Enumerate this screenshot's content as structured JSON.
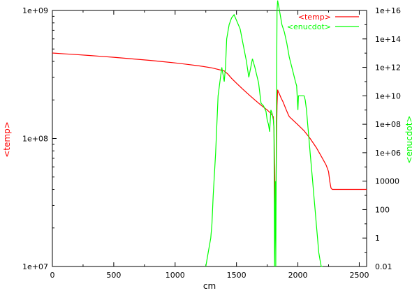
{
  "chart_data": {
    "type": "line",
    "xlabel": "cm",
    "ylabel_left": "<temp>",
    "ylabel_right": "<enucdot>",
    "xlim": [
      0,
      2560
    ],
    "ylim_left": [
      10000000,
      1000000000
    ],
    "ylim_right": [
      0.01,
      1e+16
    ],
    "yscale_left": "log",
    "yscale_right": "log",
    "x_ticks": [
      "0",
      "500",
      "1000",
      "1500",
      "2000",
      "2500"
    ],
    "x_tick_values": [
      0,
      500,
      1000,
      1500,
      2000,
      2500
    ],
    "left_ticks": [
      "1e+07",
      "1e+08",
      "1e+09"
    ],
    "left_tick_values": [
      10000000,
      100000000,
      1000000000
    ],
    "right_ticks": [
      "0.01",
      "1",
      "100",
      "10000",
      "1e+06",
      "1e+08",
      "1e+10",
      "1e+12",
      "1e+14",
      "1e+16"
    ],
    "right_tick_values": [
      0.01,
      1,
      100,
      10000,
      1000000,
      100000000,
      10000000000,
      1000000000000,
      100000000000000,
      10000000000000000
    ],
    "legend_position": "top-right",
    "grid": false,
    "series": [
      {
        "name": "<temp>",
        "axis": "left",
        "color": "#ff0000",
        "x": [
          0,
          100,
          200,
          300,
          400,
          500,
          600,
          700,
          800,
          900,
          1000,
          1100,
          1200,
          1300,
          1400,
          1430,
          1460,
          1500,
          1550,
          1600,
          1650,
          1700,
          1750,
          1780,
          1800,
          1805,
          1810,
          1815,
          1820,
          1825,
          1830,
          1835,
          1840,
          1850,
          1860,
          1880,
          1900,
          1920,
          1930,
          1950,
          2000,
          2050,
          2100,
          2150,
          2200,
          2230,
          2250,
          2260,
          2270,
          2280,
          2300,
          2400,
          2500,
          2560
        ],
        "y": [
          465000000,
          458000000,
          452000000,
          445000000,
          438000000,
          431000000,
          423000000,
          415000000,
          407000000,
          398000000,
          389000000,
          379000000,
          369000000,
          356000000,
          337000000,
          318000000,
          295000000,
          270000000,
          243000000,
          220000000,
          200000000,
          182000000,
          167000000,
          157000000,
          148000000,
          120000000,
          60000000,
          23000000,
          30000000,
          80000000,
          180000000,
          240000000,
          232000000,
          222000000,
          210000000,
          192000000,
          172000000,
          155000000,
          148000000,
          142000000,
          128000000,
          115000000,
          100000000,
          85000000,
          70000000,
          62000000,
          55000000,
          46000000,
          41000000,
          40000000,
          40000000,
          40000000,
          40000000,
          40000000
        ]
      },
      {
        "name": "<enucdot>",
        "axis": "right",
        "color": "#00ff00",
        "x": [
          1250,
          1270,
          1290,
          1300,
          1310,
          1330,
          1350,
          1380,
          1400,
          1410,
          1420,
          1440,
          1460,
          1480,
          1500,
          1530,
          1550,
          1580,
          1600,
          1630,
          1650,
          1680,
          1700,
          1720,
          1740,
          1750,
          1760,
          1770,
          1780,
          1790,
          1800,
          1805,
          1810,
          1815,
          1818,
          1820,
          1825,
          1830,
          1835,
          1840,
          1850,
          1870,
          1890,
          1910,
          1930,
          1960,
          1980,
          1990,
          2000,
          2005,
          2050,
          2060,
          2070,
          2080,
          2090,
          2100,
          2110,
          2120,
          2130,
          2140,
          2150,
          2160,
          2170,
          2180,
          2190,
          2200
        ],
        "y": [
          0.01,
          0.1,
          1,
          10,
          1000,
          1000000,
          10000000000,
          1000000000000,
          100000000000,
          1000000000000,
          100000000000000,
          1000000000000000,
          3000000000000000,
          5000000000000000,
          2000000000000000,
          500000000000000,
          60000000000000,
          3000000000000,
          200000000000,
          4000000000000,
          1000000000000,
          80000000000,
          3000000000,
          2000000000,
          800000000,
          200000000,
          100000000,
          30000000,
          1000000000,
          600000000,
          200000000,
          50000000,
          0.01,
          100,
          10000,
          0.01,
          100000000,
          10000000000000000,
          50000000000000000,
          30000000000000000,
          10000000000000000,
          1000000000000000,
          300000000000000,
          50000000000000,
          5000000000000,
          500000000000,
          100000000000,
          50000000000,
          1000000000,
          10000000000,
          10000000000,
          5000000000,
          1000000000,
          100000000,
          10000000,
          1000000,
          100000,
          10000,
          1000,
          100,
          10,
          1,
          0.1,
          0.03,
          0.01,
          0.01
        ]
      }
    ]
  }
}
